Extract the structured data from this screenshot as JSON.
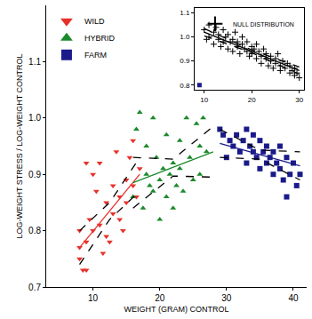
{
  "chart_data": [
    {
      "type": "scatter",
      "x_label": "WEIGHT (GRAM) CONTROL",
      "y_label": "LOG-WEIGHT STRESS / LOG-WEIGHT CONTROL",
      "xlim": [
        3,
        42
      ],
      "xticks": [
        10,
        20,
        30,
        40
      ],
      "ylim": [
        0.7,
        1.2
      ],
      "yticks": [
        0.7,
        0.8,
        0.9,
        {
          "value": 1,
          "label": "1.0"
        },
        1.1
      ],
      "grid": false,
      "legend": "upper left",
      "series": [
        {
          "name": "WILD",
          "type": "scatter",
          "marker": "triangle-down",
          "color": "#e8302a",
          "x": [
            8,
            8,
            8,
            8.5,
            9,
            9,
            9.5,
            10,
            10,
            10.5,
            11,
            11,
            11.5,
            12,
            12,
            12.5,
            13,
            13,
            13.5,
            14,
            14,
            14.5,
            15,
            15,
            15.5,
            16,
            16,
            16.5,
            17,
            9
          ],
          "values": [
            0.8,
            0.77,
            0.75,
            0.73,
            0.73,
            0.78,
            0.82,
            0.8,
            0.9,
            0.87,
            0.92,
            0.81,
            0.76,
            0.85,
            0.79,
            0.78,
            0.83,
            0.88,
            0.94,
            0.82,
            0.86,
            0.8,
            0.89,
            0.85,
            0.93,
            0.96,
            0.88,
            0.86,
            0.91,
            0.92
          ]
        },
        {
          "name": "HYBRID",
          "type": "scatter",
          "marker": "triangle-up",
          "color": "#1a8a2a",
          "x": [
            16,
            16.5,
            17,
            17.5,
            18,
            18,
            18.5,
            19,
            19,
            19.5,
            20,
            20,
            20.5,
            21,
            21,
            21.5,
            22,
            22,
            22.5,
            23,
            23,
            23.5,
            24,
            24.5,
            25,
            25.5,
            26,
            26,
            26.5,
            27
          ],
          "values": [
            0.86,
            0.98,
            1.01,
            0.84,
            0.95,
            0.9,
            0.88,
            1.0,
            0.87,
            0.93,
            0.89,
            0.82,
            0.91,
            0.97,
            0.86,
            0.9,
            0.92,
            0.84,
            0.88,
            0.96,
            0.91,
            0.87,
            1.0,
            0.93,
            0.89,
            0.99,
            0.95,
            0.9,
            1.0,
            0.94
          ]
        },
        {
          "name": "FARM",
          "type": "scatter",
          "marker": "square",
          "color": "#1a1a8a",
          "x": [
            29,
            29.5,
            30,
            30.5,
            31,
            31.5,
            32,
            32.5,
            33,
            33,
            33.5,
            34,
            34,
            34.5,
            35,
            35,
            35.5,
            36,
            36,
            36.5,
            37,
            37,
            37.5,
            38,
            38,
            38.5,
            39,
            39.5,
            40,
            40.5,
            41,
            39
          ],
          "values": [
            0.98,
            0.97,
            0.93,
            0.96,
            0.95,
            0.97,
            0.94,
            0.96,
            0.98,
            0.92,
            0.95,
            0.94,
            0.97,
            0.93,
            0.96,
            0.91,
            0.94,
            0.95,
            0.92,
            0.93,
            0.94,
            0.9,
            0.92,
            0.95,
            0.91,
            0.89,
            0.93,
            0.9,
            0.92,
            0.88,
            0.9,
            0.86
          ]
        },
        {
          "type": "line",
          "line_style": "solid",
          "color": "#e8302a",
          "x": [
            8,
            17
          ],
          "values": [
            0.77,
            0.9
          ]
        },
        {
          "type": "line",
          "line_style": "dashed",
          "color": "#000000",
          "x": [
            8,
            12.5,
            17
          ],
          "values": [
            0.74,
            0.82,
            0.87
          ]
        },
        {
          "type": "line",
          "line_style": "dashed",
          "color": "#000000",
          "x": [
            8,
            12.5,
            17
          ],
          "values": [
            0.8,
            0.85,
            0.93
          ]
        },
        {
          "type": "line",
          "line_style": "solid",
          "color": "#1a8a2a",
          "x": [
            16,
            28
          ],
          "values": [
            0.885,
            0.94
          ]
        },
        {
          "type": "line",
          "line_style": "dashed",
          "color": "#000000",
          "x": [
            16,
            22,
            28
          ],
          "values": [
            0.84,
            0.897,
            0.895
          ]
        },
        {
          "type": "line",
          "line_style": "dashed",
          "color": "#000000",
          "x": [
            16,
            22,
            28
          ],
          "values": [
            0.93,
            0.927,
            0.985
          ]
        },
        {
          "type": "line",
          "line_style": "solid",
          "color": "#1a1a8a",
          "x": [
            29,
            41
          ],
          "values": [
            0.955,
            0.915
          ]
        },
        {
          "type": "line",
          "line_style": "dashed",
          "color": "#000000",
          "x": [
            29,
            35,
            41
          ],
          "values": [
            0.93,
            0.927,
            0.89
          ]
        },
        {
          "type": "line",
          "line_style": "dashed",
          "color": "#000000",
          "x": [
            29,
            35,
            41
          ],
          "values": [
            0.98,
            0.943,
            0.94
          ]
        }
      ]
    },
    {
      "type": "scatter",
      "xlim": [
        8,
        31
      ],
      "xticks": [
        10,
        20,
        30
      ],
      "ylim": [
        0.78,
        1.12
      ],
      "yticks": [
        0.8,
        0.9,
        {
          "value": 1,
          "label": "1.0"
        },
        1.1
      ],
      "grid": false,
      "legend": "upper left",
      "series": [
        {
          "name": "NULL DISTRIBUTION",
          "type": "scatter",
          "marker": "cross",
          "color": "#000000",
          "x": [
            10,
            10.5,
            11,
            11,
            12,
            12,
            12.5,
            13,
            13,
            13.5,
            14,
            14,
            14.5,
            15,
            15,
            15.5,
            16,
            16,
            16.5,
            17,
            17,
            17.5,
            18,
            18,
            18.5,
            19,
            19,
            19.5,
            20,
            20,
            20.5,
            21,
            21,
            21.5,
            22,
            22,
            22.5,
            23,
            23,
            23.5,
            24,
            24,
            24.5,
            25,
            25,
            25.5,
            26,
            26,
            26.5,
            27,
            27.5,
            28,
            28,
            28.5,
            29,
            29,
            29.5,
            30
          ],
          "values": [
            1.03,
            0.99,
            1.05,
            1.0,
            1.02,
            0.97,
            1.04,
            0.99,
            1.01,
            0.96,
            1.03,
            0.98,
            1.0,
            0.95,
            1.01,
            0.98,
            0.99,
            0.94,
            1.02,
            0.96,
            0.98,
            0.93,
            0.97,
            1.0,
            0.95,
            0.94,
            0.98,
            0.92,
            0.96,
            0.93,
            0.95,
            0.91,
            0.97,
            0.94,
            0.92,
            0.89,
            0.95,
            0.91,
            0.93,
            0.88,
            0.92,
            0.9,
            0.87,
            0.91,
            0.89,
            0.93,
            0.88,
            0.86,
            0.9,
            0.87,
            0.89,
            0.85,
            0.88,
            0.86,
            0.84,
            0.87,
            0.85,
            0.83
          ]
        },
        {
          "type": "scatter",
          "marker": "square",
          "color": "#1a1a8a",
          "x": [
            9
          ],
          "values": [
            0.8
          ]
        },
        {
          "type": "line",
          "line_style": "solid",
          "color": "#000000",
          "x": [
            10,
            30
          ],
          "values": [
            1.02,
            0.86
          ]
        },
        {
          "type": "line",
          "line_style": "dashed",
          "color": "#000000",
          "x": [
            10,
            20,
            30
          ],
          "values": [
            1.005,
            0.934,
            0.845
          ]
        },
        {
          "type": "line",
          "line_style": "dashed",
          "color": "#000000",
          "x": [
            10,
            20,
            30
          ],
          "values": [
            1.035,
            0.946,
            0.875
          ]
        }
      ]
    }
  ]
}
